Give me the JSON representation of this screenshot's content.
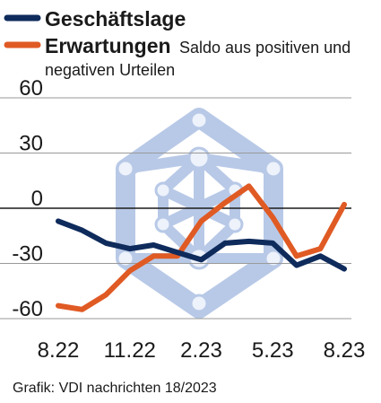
{
  "chart_data": {
    "type": "line",
    "title": "",
    "xlabel": "",
    "ylabel": "",
    "ylim": [
      -60,
      60
    ],
    "yticks": [
      60,
      30,
      0,
      -30,
      -60
    ],
    "x": [
      "8.22",
      "9.22",
      "10.22",
      "11.22",
      "12.22",
      "1.23",
      "2.23",
      "3.23",
      "4.23",
      "5.23",
      "6.23",
      "7.23",
      "8.23"
    ],
    "x_tick_labels": [
      "8.22",
      "11.22",
      "2.23",
      "5.23",
      "8.23"
    ],
    "grid": true,
    "legend_position": "top-left",
    "series": [
      {
        "name": "Geschäftslage",
        "color": "#0e2b5c",
        "values": [
          -7,
          -12,
          -19,
          -22,
          -20,
          -24,
          -28,
          -19,
          -18,
          -19,
          -31,
          -26,
          -33
        ]
      },
      {
        "name": "Erwartungen",
        "color": "#e05a24",
        "values": [
          -53,
          -55,
          -47,
          -34,
          -26,
          -26,
          -7,
          3,
          12,
          -5,
          -26,
          -22,
          2
        ]
      }
    ],
    "legend_extra": {
      "line1": "Saldo aus positiven und",
      "line2": "negativen Urteilen"
    }
  },
  "source": "Grafik: VDI nachrichten 18/2023",
  "watermark": "VDI-logo"
}
